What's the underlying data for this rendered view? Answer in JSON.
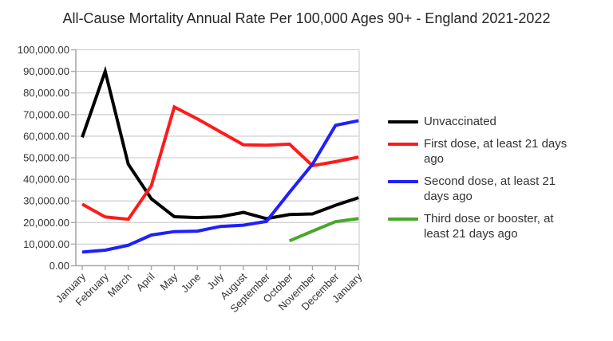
{
  "title": "All-Cause Mortality Annual Rate Per 100,000 Ages 90+ - England 2021-2022",
  "colors": {
    "grid": "#c9c9c9",
    "axis": "#a8a8a8",
    "tick_label": "#333333",
    "title_text": "#262626",
    "background": "#ffffff"
  },
  "chart_data": {
    "type": "line",
    "title": "All-Cause Mortality Annual Rate Per 100,000 Ages 90+ - England 2021-2022",
    "xlabel": "",
    "ylabel": "",
    "categories": [
      "January",
      "February",
      "March",
      "April",
      "May",
      "June",
      "July",
      "August",
      "September",
      "October",
      "November",
      "December",
      "January"
    ],
    "series": [
      {
        "name": "Unvaccinated",
        "color": "#000000",
        "values": [
          59500,
          90000,
          47000,
          31000,
          22700,
          22300,
          22700,
          24700,
          21800,
          23700,
          24000,
          28000,
          31500
        ]
      },
      {
        "name": "First dose, at least 21 days ago",
        "color": "#ff1a1a",
        "values": [
          28500,
          22600,
          21500,
          37000,
          73500,
          68000,
          62000,
          56000,
          55800,
          56300,
          46300,
          48200,
          50300
        ]
      },
      {
        "name": "Second dose, at least 21 days ago",
        "color": "#1f1fff",
        "values": [
          6300,
          7200,
          9500,
          14200,
          15800,
          16000,
          18200,
          18800,
          20500,
          34000,
          47000,
          65000,
          67200
        ]
      },
      {
        "name": "Third dose or booster, at least 21 days ago",
        "color": "#4aa62b",
        "values": [
          null,
          null,
          null,
          null,
          null,
          null,
          null,
          null,
          null,
          11500,
          16000,
          20400,
          21800
        ]
      }
    ],
    "ylim": [
      0,
      100000
    ],
    "ytick_step": 10000,
    "ytick_label_format": "#,##0.00",
    "grid": "horizontal",
    "legend_position": "right",
    "x_tick_label_rotation_deg": -45
  }
}
